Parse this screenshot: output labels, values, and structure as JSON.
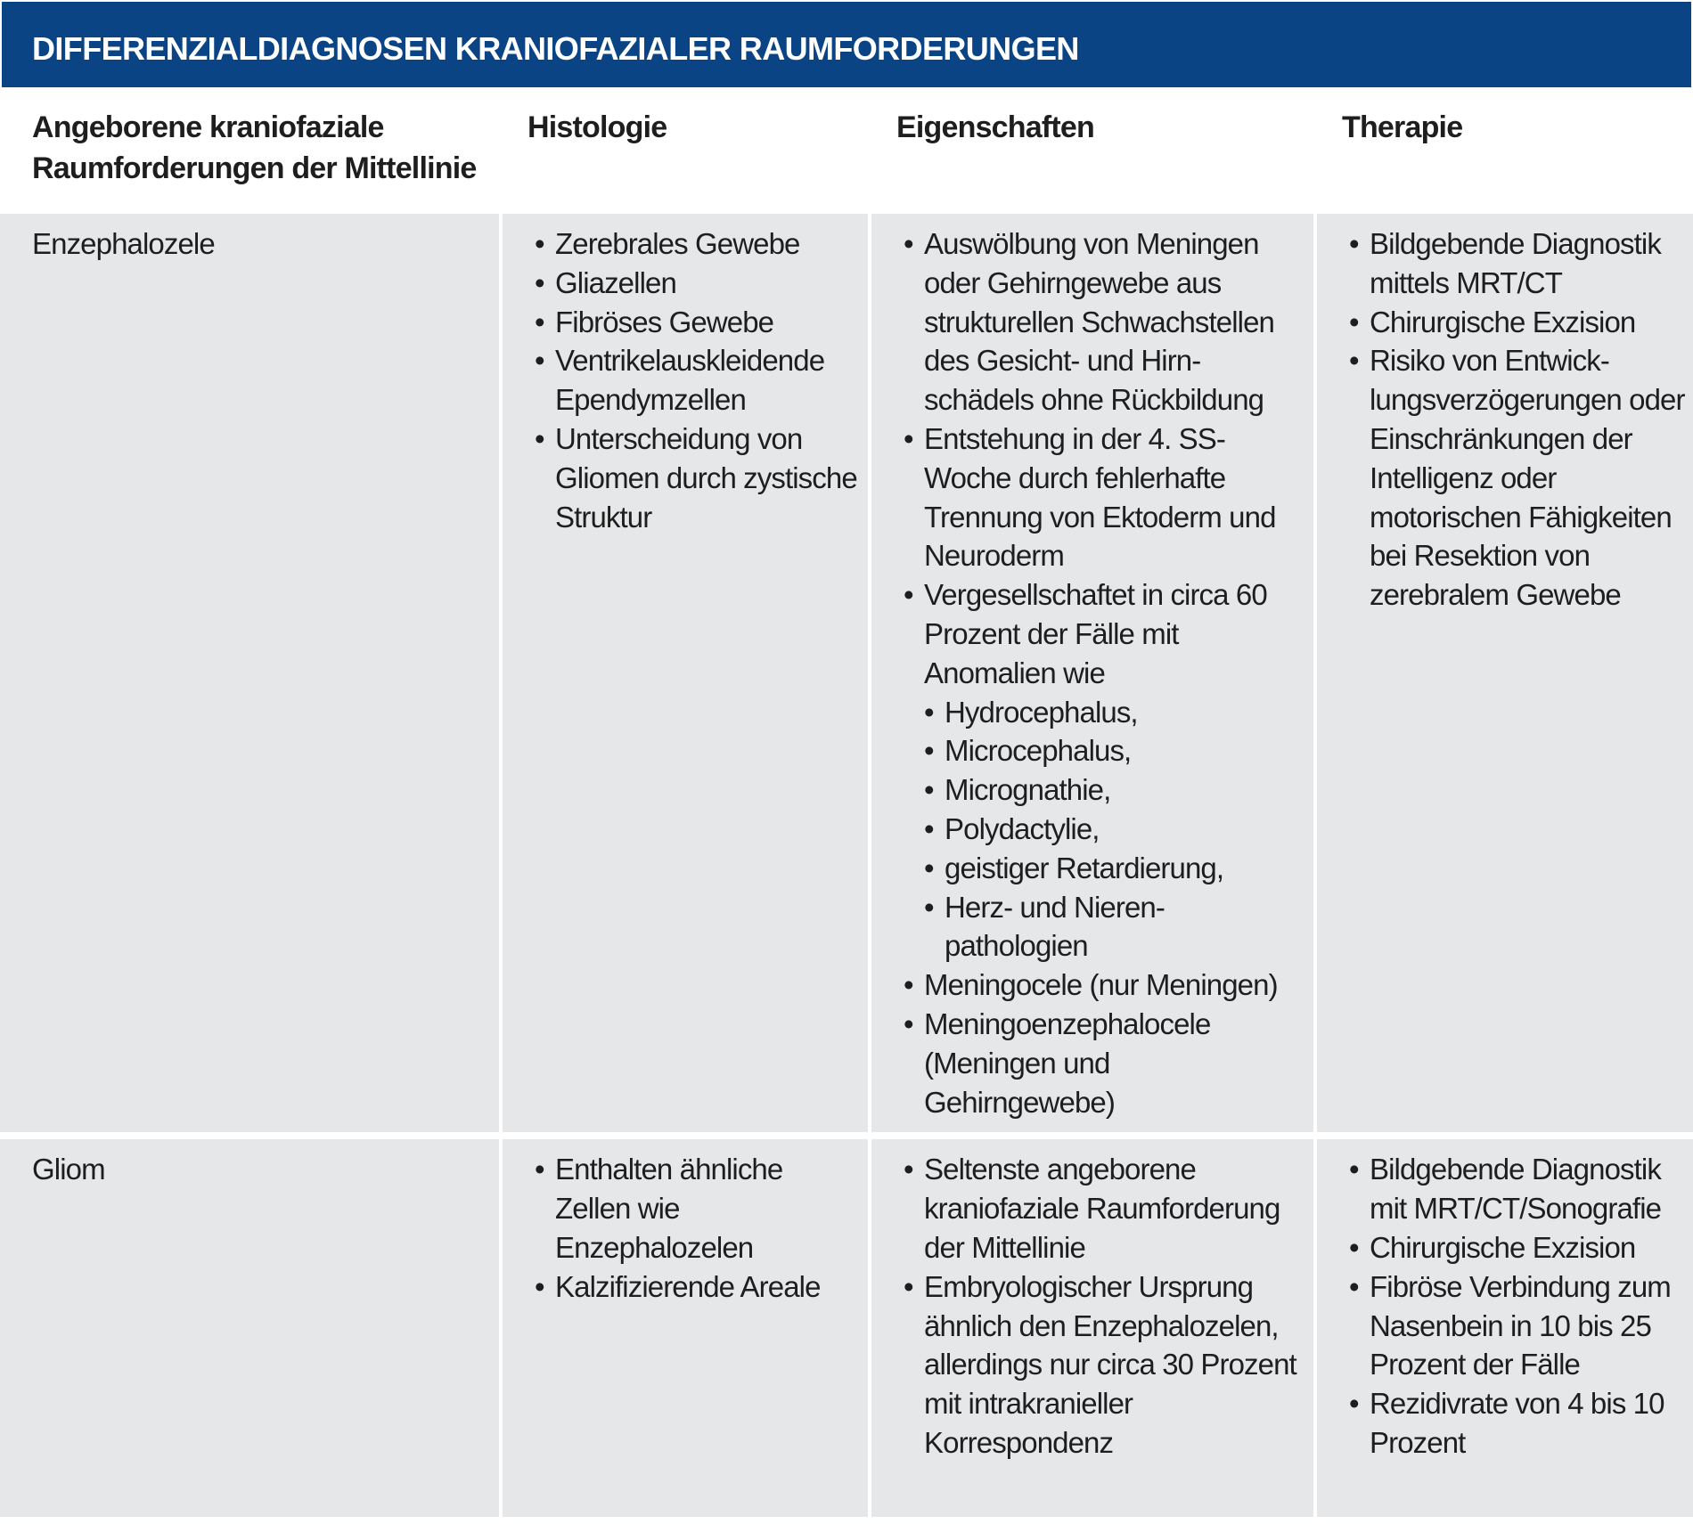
{
  "title": "DIFFERENZIALDIAGNOSEN KRANIOFAZIALER RAUMFORDERUNGEN",
  "colors": {
    "banner": "#0b4485",
    "row_background": "#e6e7e9"
  },
  "columns": [
    "Angeborene kraniofaziale Raumforderungen der Mittellinie",
    "Histologie",
    "Eigenschaften",
    "Therapie"
  ],
  "rows": [
    {
      "name": "Enzephalozele",
      "histologie": [
        "Zerebrales Gewebe",
        "Gliazellen",
        "Fibröses Gewebe",
        "Ventrikelauskleidende Ependymzellen",
        "Unterscheidung von Gliomen durch zystische Struktur"
      ],
      "eigenschaften": [
        "Auswölbung von Meningen oder Gehirngewebe aus strukturellen Schwachstellen des Gesicht- und Hirn-schädels ohne Rückbildung",
        "Entstehung in der 4. SS-Woche durch fehlerhafte Trennung von Ektoderm und Neuroderm",
        "Vergesellschaftet in circa 60 Prozent der Fälle mit Anomalien wie",
        "Meningocele (nur Meningen)",
        "Meningoenzephalocele (Meningen und Gehirngewebe)"
      ],
      "anomalien": [
        "Hydrocephalus,",
        "Microcephalus,",
        "Micrognathie,",
        "Polydactylie,",
        "geistiger Retardierung,",
        "Herz- und Nieren-pathologien"
      ],
      "therapie": [
        "Bildgebende Diagnostik mittels MRT/CT",
        "Chirurgische Exzision",
        "Risiko von Entwick-lungsverzögerungen oder Einschränkungen der Intelligenz oder motorischen Fähigkeiten bei Resektion von zerebralem Gewebe"
      ]
    },
    {
      "name": "Gliom",
      "histologie": [
        "Enthalten ähnliche Zellen wie Enzephalozelen",
        "Kalzifizierende Areale"
      ],
      "eigenschaften": [
        "Seltenste angeborene kraniofaziale Raumforderung der Mittellinie",
        "Embryologischer Ursprung ähnlich den Enzephalozelen, allerdings nur circa 30 Prozent mit intrakranieller Korrespondenz"
      ],
      "therapie": [
        "Bildgebende Diagnostik mit MRT/CT/Sonografie",
        "Chirurgische Exzision",
        "Fibröse Verbindung zum Nasenbein in 10 bis 25 Prozent der Fälle",
        "Rezidivrate von 4 bis 10 Prozent"
      ]
    }
  ]
}
